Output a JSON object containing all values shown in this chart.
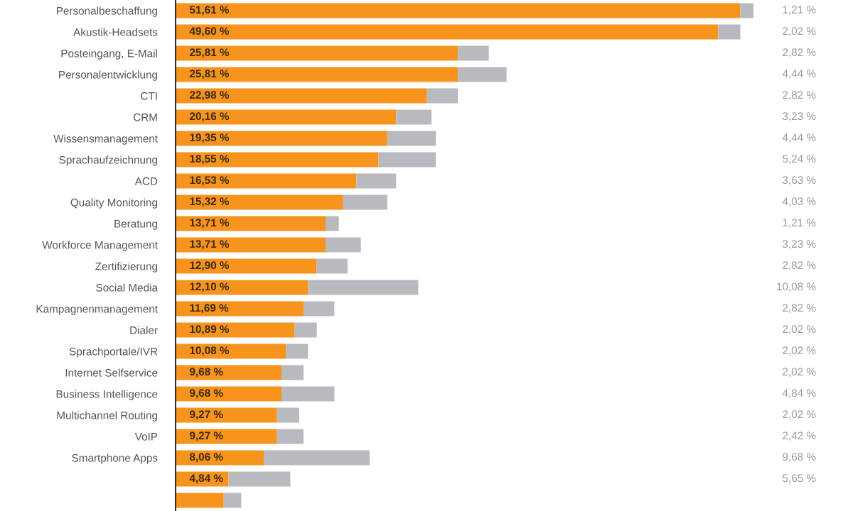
{
  "chart_data": {
    "type": "bar",
    "orientation": "horizontal",
    "stacked": true,
    "categories": [
      "Personalbeschaffung",
      "Akustik-Headsets",
      "Posteingang, E-Mail",
      "Personalentwicklung",
      "CTI",
      "CRM",
      "Wissensmanagement",
      "Sprachaufzeichnung",
      "ACD",
      "Quality Monitoring",
      "Beratung",
      "Workforce Management",
      "Zertifizierung",
      "Social Media",
      "Kampagnenmanagement",
      "Dialer",
      "Sprachportale/IVR",
      "Internet Selfservice",
      "Business Intelligence",
      "Multichannel Routing",
      "VoIP",
      "Smartphone Apps",
      null,
      null
    ],
    "series": [
      {
        "color": "#f7941d",
        "values": [
          51.61,
          49.6,
          25.81,
          25.81,
          22.98,
          20.16,
          19.35,
          18.55,
          16.53,
          15.32,
          13.71,
          13.71,
          12.9,
          12.1,
          11.69,
          10.89,
          10.08,
          9.68,
          9.68,
          9.27,
          9.27,
          8.06,
          4.84,
          4.4
        ],
        "value_labels": [
          "51,61 %",
          "49,60 %",
          "25,81 %",
          "25,81 %",
          "22,98 %",
          "20,16 %",
          "19,35 %",
          "18,55 %",
          "16,53 %",
          "15,32 %",
          "13,71 %",
          "13,71 %",
          "12,90 %",
          "12,10 %",
          "11,69 %",
          "10,89 %",
          "10,08 %",
          "9,68 %",
          "9,68 %",
          "9,27 %",
          "9,27 %",
          "8,06 %",
          "4,84 %",
          null
        ]
      },
      {
        "color": "#b8babd",
        "values": [
          1.21,
          2.02,
          2.82,
          4.44,
          2.82,
          3.23,
          4.44,
          5.24,
          3.63,
          4.03,
          1.21,
          3.23,
          2.82,
          10.08,
          2.82,
          2.02,
          2.02,
          2.02,
          4.84,
          2.02,
          2.42,
          9.68,
          5.65,
          1.6
        ],
        "value_labels": [
          "1,21 %",
          "2,02 %",
          "2,82 %",
          "4,44 %",
          "2,82 %",
          "3,23 %",
          "4,44 %",
          "5,24 %",
          "3,63 %",
          "4,03 %",
          "1,21 %",
          "3,23 %",
          "2,82 %",
          "10,08 %",
          "2,82 %",
          "2,02 %",
          "2,02 %",
          "2,02 %",
          "4,84 %",
          "2,02 %",
          "2,42 %",
          "9,68 %",
          "5,65 %",
          null
        ]
      }
    ]
  }
}
